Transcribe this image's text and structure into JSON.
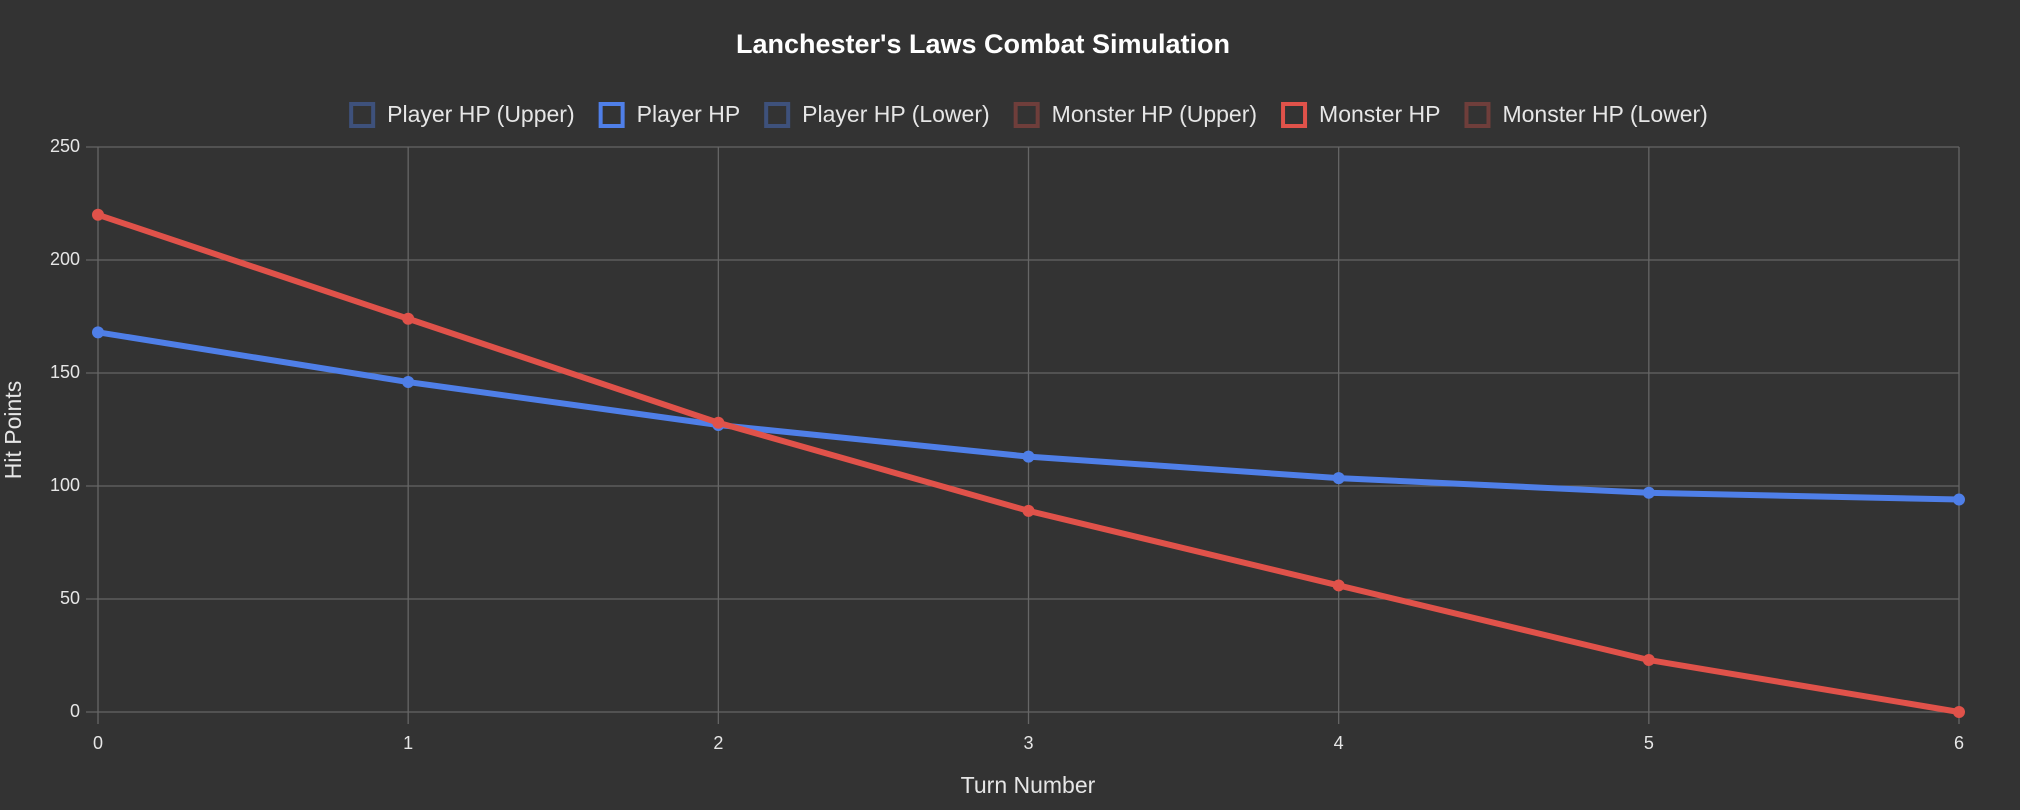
{
  "chart_data": {
    "type": "line",
    "title": "Lanchester's Laws Combat Simulation",
    "x_label": "Turn Number",
    "y_label": "Hit Points",
    "categories": [
      "0",
      "1",
      "2",
      "3",
      "4",
      "5",
      "6"
    ],
    "series": [
      {
        "name": "Player HP (Upper)",
        "color": "rgba(79,127,232,0.4)",
        "values": [
          null,
          null,
          null,
          null,
          null,
          null,
          null
        ]
      },
      {
        "name": "Player HP",
        "color": "#4f7fe8",
        "values": [
          168,
          146,
          127,
          113,
          103.5,
          97,
          94
        ]
      },
      {
        "name": "Player HP (Lower)",
        "color": "rgba(79,127,232,0.4)",
        "values": [
          null,
          null,
          null,
          null,
          null,
          null,
          null
        ]
      },
      {
        "name": "Monster HP (Upper)",
        "color": "rgba(224,82,74,0.35)",
        "values": [
          null,
          null,
          null,
          null,
          null,
          null,
          null
        ]
      },
      {
        "name": "Monster HP",
        "color": "#e0524a",
        "values": [
          220,
          174,
          128,
          89,
          56,
          23,
          0
        ]
      },
      {
        "name": "Monster HP (Lower)",
        "color": "rgba(224,82,74,0.35)",
        "values": [
          null,
          null,
          null,
          null,
          null,
          null,
          null
        ]
      }
    ],
    "ylim": [
      0,
      250
    ],
    "yticks": [
      0,
      50,
      100,
      150,
      200,
      250
    ],
    "grid": true,
    "legend": "top"
  }
}
